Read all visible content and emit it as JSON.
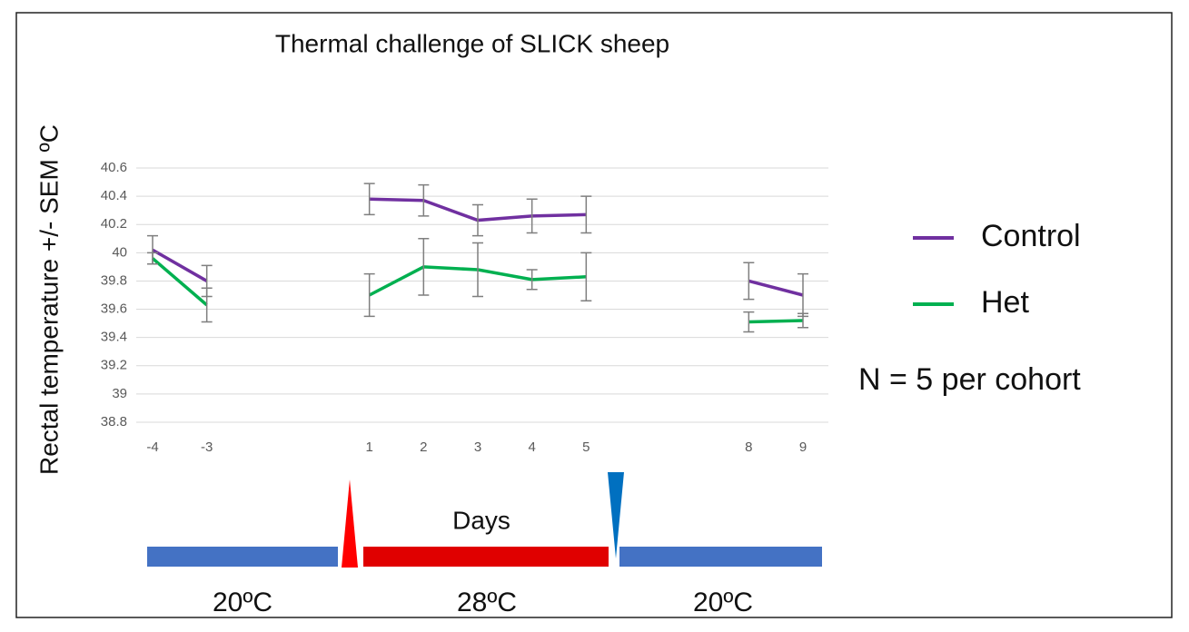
{
  "chart_data": {
    "type": "line",
    "title": "Thermal challenge of SLICK sheep",
    "ylabel": "Rectal temperature +/- SEM ºC",
    "xlabel": "Days",
    "categories": [
      "-4",
      "-3",
      null,
      null,
      "1",
      "2",
      "3",
      "4",
      "5",
      null,
      null,
      "8",
      "9"
    ],
    "series": [
      {
        "name": "Control",
        "color": "#7030a0",
        "values": [
          40.02,
          39.8,
          null,
          null,
          40.38,
          40.37,
          40.23,
          40.26,
          40.27,
          null,
          null,
          39.8,
          39.7
        ],
        "errors": [
          0.1,
          0.11,
          null,
          null,
          0.11,
          0.11,
          0.11,
          0.12,
          0.13,
          null,
          null,
          0.13,
          0.15
        ]
      },
      {
        "name": "Het",
        "color": "#00b050",
        "values": [
          39.96,
          39.63,
          null,
          null,
          39.7,
          39.9,
          39.88,
          39.81,
          39.83,
          null,
          null,
          39.51,
          39.52
        ],
        "errors": [
          0.04,
          0.12,
          null,
          null,
          0.15,
          0.2,
          0.19,
          0.07,
          0.17,
          null,
          null,
          0.07,
          0.05
        ]
      }
    ],
    "ylim": [
      38.8,
      40.6
    ],
    "yticks": [
      38.8,
      39,
      39.2,
      39.4,
      39.6,
      39.8,
      40,
      40.2,
      40.4,
      40.6
    ],
    "grid": true,
    "legend": "right",
    "annotations": [
      "N = 5 per cohort",
      "20ºC",
      "28ºC",
      "20ºC"
    ]
  }
}
